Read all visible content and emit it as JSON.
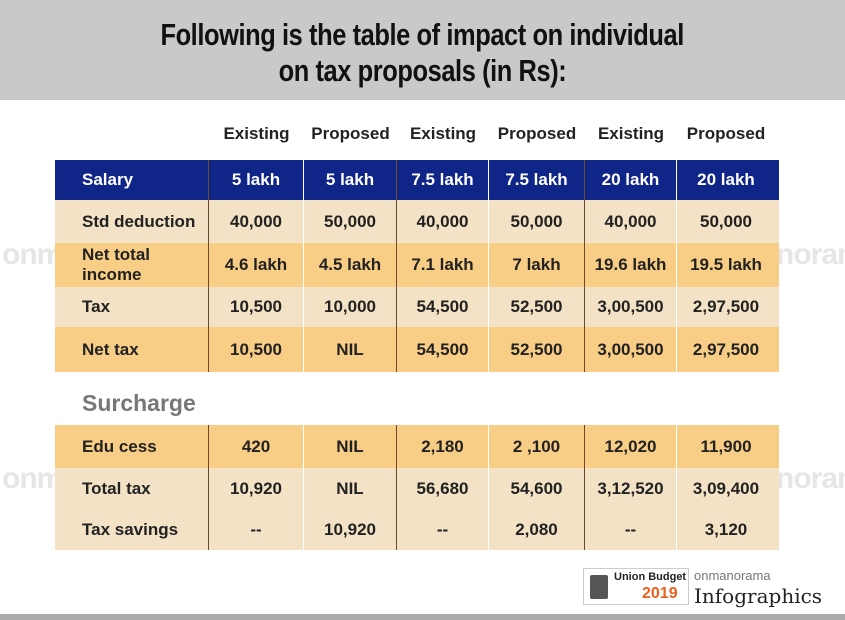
{
  "title": {
    "line1": "Following is the table of impact on individual",
    "line2": "on tax proposals (in Rs):"
  },
  "watermark": "onmanorama",
  "chart_data": {
    "type": "table",
    "columns": [
      "Existing",
      "Proposed",
      "Existing",
      "Proposed",
      "Existing",
      "Proposed"
    ],
    "header": {
      "label": "Salary",
      "values": [
        "5 lakh",
        "5 lakh",
        "7.5 lakh",
        "7.5 lakh",
        "20 lakh",
        "20 lakh"
      ]
    },
    "rows": [
      {
        "label": "Std deduction",
        "values": [
          "40,000",
          "50,000",
          "40,000",
          "50,000",
          "40,000",
          "50,000"
        ]
      },
      {
        "label": "Net total income",
        "values": [
          "4.6 lakh",
          "4.5 lakh",
          "7.1 lakh",
          "7 lakh",
          "19.6 lakh",
          "19.5 lakh"
        ]
      },
      {
        "label": "Tax",
        "values": [
          "10,500",
          "10,000",
          "54,500",
          "52,500",
          "3,00,500",
          "2,97,500"
        ]
      },
      {
        "label": "Net tax",
        "values": [
          "10,500",
          "NIL",
          "54,500",
          "52,500",
          "3,00,500",
          "2,97,500"
        ]
      }
    ],
    "section": "Surcharge",
    "rows2": [
      {
        "label": "Edu cess",
        "values": [
          "420",
          "NIL",
          "2,180",
          "2 ,100",
          "12,020",
          "11,900"
        ]
      },
      {
        "label": "Total tax",
        "values": [
          "10,920",
          "NIL",
          "56,680",
          "54,600",
          "3,12,520",
          "3,09,400"
        ]
      },
      {
        "label": "Tax savings",
        "values": [
          "--",
          "10,920",
          "--",
          "2,080",
          "--",
          "3,120"
        ]
      }
    ]
  },
  "footer": {
    "budget_line1": "Union Budget",
    "budget_line2": "2019",
    "brand": "onmanorama",
    "infographics": "Infographics"
  },
  "colors": {
    "header": "#0f2588",
    "light": "#f3e2c5",
    "orange": "#f8cd86"
  }
}
